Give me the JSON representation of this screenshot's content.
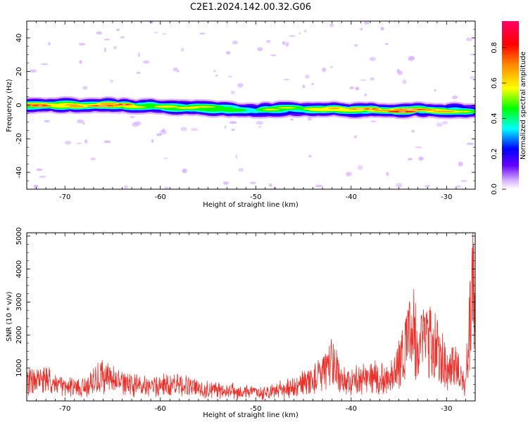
{
  "title": "C2E1.2024.142.00.32.G06",
  "colors": {
    "snr_line": "#e8322c",
    "colorscale": [
      "#ffffff",
      "#6600ff",
      "#0000ff",
      "#00ffff",
      "#00ff00",
      "#ffff00",
      "#ff8800",
      "#ff0000",
      "#ff0066"
    ]
  },
  "chart_data": [
    {
      "type": "heatmap",
      "xlabel": "Height of straight line (km)",
      "ylabel": "Frequency (Hz)",
      "xlim": [
        -74,
        -27
      ],
      "ylim": [
        -50,
        50
      ],
      "xticks": [
        -70,
        -60,
        -50,
        -40,
        -30
      ],
      "yticks": [
        -40,
        -20,
        0,
        20,
        40
      ],
      "colorbar": {
        "label": "Normalized spectral amplitude",
        "range": [
          0.0,
          0.95
        ],
        "ticks": [
          "0.0",
          "0.2",
          "0.4",
          "0.6",
          "0.8"
        ]
      },
      "ridge": {
        "description_points_km": [
          -73,
          -66,
          -60,
          -55,
          -50,
          -45,
          -40,
          -35,
          -27
        ],
        "center_freq_hz": [
          0,
          0,
          -1,
          -2,
          -3,
          -2,
          -3,
          -3,
          -3
        ],
        "peak_amplitude": [
          0.8,
          0.9,
          0.65,
          0.55,
          0.6,
          0.55,
          0.75,
          0.9,
          0.6
        ]
      }
    },
    {
      "type": "line",
      "xlabel": "Height of straight line (km)",
      "ylabel": "SNR (10 * v/v)",
      "xlim": [
        -74,
        -27
      ],
      "ylim": [
        0,
        5100
      ],
      "xticks": [
        -70,
        -60,
        -50,
        -40,
        -30
      ],
      "yticks": [
        1000,
        2000,
        3000,
        4000,
        5000
      ],
      "envelope": {
        "x": [
          -74,
          -72,
          -70,
          -68,
          -66,
          -64,
          -62,
          -60,
          -58,
          -56,
          -54,
          -52,
          -50,
          -48,
          -46,
          -44,
          -43,
          -42,
          -41,
          -40,
          -38,
          -36,
          -35,
          -34,
          -33.5,
          -33,
          -32,
          -31,
          -30,
          -29,
          -28,
          -27.5,
          -27.2,
          -27
        ],
        "y": [
          800,
          850,
          550,
          550,
          1100,
          700,
          600,
          650,
          700,
          500,
          450,
          400,
          350,
          400,
          600,
          900,
          1100,
          1700,
          900,
          800,
          1000,
          900,
          1600,
          2600,
          3000,
          2000,
          2700,
          2400,
          1300,
          1500,
          700,
          3800,
          4600,
          3600
        ]
      }
    }
  ]
}
